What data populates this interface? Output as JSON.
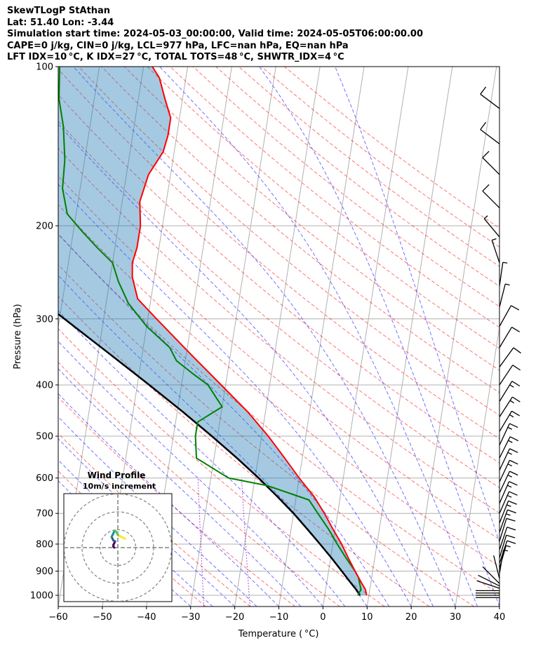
{
  "header": {
    "line1": "SkewTLogP StAthan",
    "line2": "Lat: 51.40   Lon: -3.44",
    "line3": "Simulation start time: 2024-05-03_00:00:00, Valid time: 2024-05-05T06:00:00.00",
    "line4": "CAPE=0 j/kg, CIN=0 j/kg, LCL=977 hPa, LFC=nan hPa, EQ=nan hPa",
    "line5": "LFT IDX=10 °C, K IDX=27 °C, TOTAL TOTS=48 °C, SHWTR_IDX=4 °C"
  },
  "chart_data": {
    "type": "line",
    "subtype": "skew-T log-P diagram",
    "xlabel": "Temperature ( °C)",
    "ylabel": "Pressure (hPa)",
    "xlim": [
      -60,
      40
    ],
    "ylim": [
      1050,
      100
    ],
    "y_scale": "log",
    "x_ticks": [
      "−60",
      "−50",
      "−40",
      "−30",
      "−20",
      "−10",
      "0",
      "10",
      "20",
      "30",
      "40"
    ],
    "y_ticks": [
      "100",
      "200",
      "300",
      "400",
      "500",
      "600",
      "700",
      "800",
      "900",
      "1000"
    ],
    "grid": true,
    "series": [
      {
        "role": "temperature",
        "color": "#ff0000",
        "p": [
          1000,
          975,
          950,
          925,
          900,
          850,
          800,
          750,
          700,
          650,
          600,
          550,
          500,
          450,
          400,
          350,
          300,
          275,
          250,
          235,
          220,
          200,
          180,
          160,
          145,
          135,
          125,
          115,
          105,
          100
        ],
        "t": [
          9.5,
          9.0,
          8.0,
          7.0,
          6.0,
          4.0,
          2.0,
          -0.5,
          -3.0,
          -6.0,
          -10.0,
          -14.0,
          -18.5,
          -24.0,
          -31.0,
          -39.0,
          -48.0,
          -53.0,
          -55.0,
          -55.5,
          -55.0,
          -55.0,
          -56.0,
          -55.0,
          -52.5,
          -52.0,
          -52.0,
          -54.0,
          -56.0,
          -58.0
        ]
      },
      {
        "role": "dewpoint",
        "color": "#008000",
        "p": [
          1000,
          975,
          950,
          925,
          900,
          850,
          800,
          750,
          700,
          660,
          620,
          600,
          550,
          500,
          470,
          440,
          400,
          380,
          360,
          340,
          310,
          280,
          255,
          235,
          220,
          205,
          190,
          170,
          150,
          130,
          115,
          100
        ],
        "t": [
          7.5,
          8.0,
          7.5,
          7.0,
          6.0,
          3.5,
          1.0,
          -1.5,
          -4.5,
          -7.0,
          -17.0,
          -26.0,
          -34.0,
          -35.0,
          -35.0,
          -30.0,
          -34.0,
          -38.0,
          -42.0,
          -44.0,
          -50.0,
          -55.0,
          -58.0,
          -60.0,
          -64.0,
          -68.0,
          -72.0,
          -74.0,
          -74.5,
          -76.0,
          -78.0,
          -79.0
        ]
      },
      {
        "role": "parcel profile",
        "color": "#000000",
        "p": [
          1000,
          977,
          950,
          900,
          850,
          800,
          750,
          700,
          650,
          600,
          550,
          500,
          450,
          400,
          350,
          300,
          250,
          200,
          150,
          100
        ],
        "t": [
          8.0,
          7.0,
          5.6,
          3.0,
          0.2,
          -2.9,
          -6.3,
          -10.0,
          -14.3,
          -19.2,
          -24.8,
          -31.3,
          -38.7,
          -47.3,
          -57.3,
          -68.9,
          -82.6,
          -99.0,
          -119.6,
          -148.0
        ]
      }
    ],
    "shaded_region": "between temperature and parcel profile",
    "barbs": {
      "color": "#000000",
      "p": [
        1010,
        1000,
        990,
        980,
        970,
        960,
        950,
        930,
        910,
        890,
        870,
        850,
        820,
        790,
        760,
        730,
        700,
        670,
        640,
        610,
        580,
        550,
        520,
        490,
        460,
        430,
        400,
        370,
        340,
        310,
        285,
        260,
        235,
        210,
        185,
        160,
        140,
        120
      ],
      "u": [
        4,
        4,
        4,
        4,
        3,
        2,
        2,
        1,
        -1,
        -2,
        -3,
        -3,
        -4,
        -4,
        -5,
        -6,
        -7,
        -7,
        -8,
        -8,
        -8,
        -8,
        -7,
        -9,
        -9,
        -8,
        -8,
        -8,
        -6,
        -5,
        -2,
        -1,
        2,
        5,
        10,
        10,
        8,
        8
      ],
      "v": [
        0,
        0,
        0,
        0,
        1,
        1,
        2,
        4,
        6,
        7,
        9,
        10,
        12,
        13,
        14,
        15,
        16,
        16,
        17,
        17,
        17,
        16,
        15,
        15,
        14,
        13,
        12,
        11,
        10,
        9,
        8,
        7,
        6,
        6,
        10,
        10,
        6,
        6
      ]
    },
    "inset": {
      "title": "Wind Profile",
      "subtitle": "10m/s increment",
      "points_u": [
        -2,
        -2.5,
        -2.5,
        -2,
        -1.5,
        -2.5,
        -3,
        -3.5,
        -3,
        -2.5,
        -2,
        -1.5,
        -1,
        0,
        1,
        2,
        3,
        4
      ],
      "points_v": [
        0,
        0.5,
        1.5,
        2.5,
        3.5,
        4,
        5,
        6,
        7,
        8,
        9,
        9.5,
        9,
        7,
        6.5,
        6,
        5.5,
        5
      ],
      "colormap": [
        "#440154",
        "#3b528b",
        "#21918c",
        "#5ec962",
        "#fde725"
      ]
    }
  }
}
